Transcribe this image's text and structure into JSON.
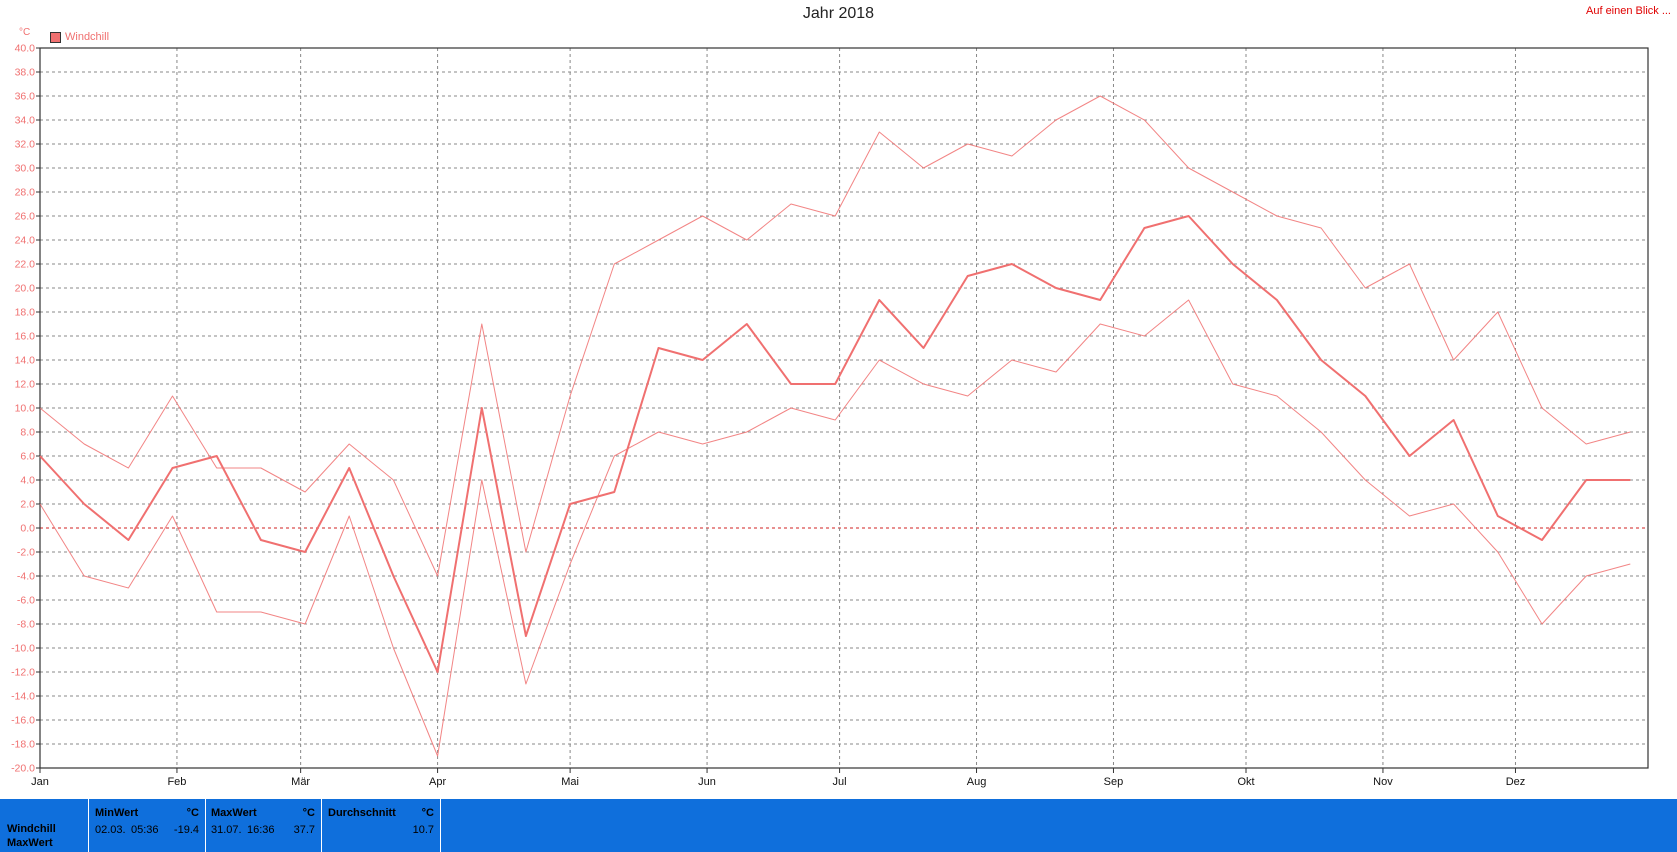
{
  "header": {
    "title": "Jahr 2018",
    "at_a_glance": "Auf einen Blick ..."
  },
  "colors": {
    "series": "#f07070",
    "zero_line": "#d02020",
    "footer": "#0f6fdc"
  },
  "chart_data": {
    "type": "line",
    "title": "Jahr 2018",
    "ylabel": "°C",
    "ylim": [
      -20,
      40
    ],
    "yticks": [
      "40.0",
      "38.0",
      "36.0",
      "34.0",
      "32.0",
      "30.0",
      "28.0",
      "26.0",
      "24.0",
      "22.0",
      "20.0",
      "18.0",
      "16.0",
      "14.0",
      "12.0",
      "10.0",
      "8.0",
      "6.0",
      "4.0",
      "2.0",
      "0.0",
      "-2.0",
      "-4.0",
      "-6.0",
      "-8.0",
      "-10.0",
      "-12.0",
      "-14.0",
      "-16.0",
      "-18.0",
      "-20.0"
    ],
    "months": [
      "Jan",
      "Feb",
      "Mär",
      "Apr",
      "Mai",
      "Jun",
      "Jul",
      "Aug",
      "Sep",
      "Okt",
      "Nov",
      "Dez"
    ],
    "grid": true,
    "legend": {
      "label": "Windchill",
      "position": "top-left"
    },
    "x": [
      1,
      11,
      21,
      31,
      41,
      51,
      61,
      71,
      81,
      91,
      101,
      111,
      121,
      131,
      141,
      151,
      161,
      171,
      181,
      191,
      201,
      211,
      221,
      231,
      241,
      251,
      261,
      271,
      281,
      291,
      301,
      311,
      321,
      331,
      341,
      351,
      361
    ],
    "series": [
      {
        "name": "Windchill",
        "style": "mean",
        "values": [
          6,
          2,
          -1,
          5,
          6,
          -1,
          -2,
          5,
          -4,
          -12,
          10,
          -9,
          2,
          3,
          15,
          14,
          17,
          12,
          12,
          19,
          15,
          21,
          22,
          20,
          19,
          25,
          26,
          22,
          19,
          14,
          11,
          6,
          9,
          1,
          -1,
          4,
          4
        ]
      },
      {
        "style": "max",
        "values": [
          10,
          7,
          5,
          11,
          5,
          5,
          3,
          7,
          4,
          -4,
          17,
          -2,
          11,
          22,
          24,
          26,
          24,
          27,
          26,
          33,
          30,
          32,
          31,
          34,
          36,
          34,
          30,
          28,
          26,
          25,
          20,
          22,
          14,
          18,
          10,
          7,
          8
        ]
      },
      {
        "style": "min",
        "values": [
          2,
          -4,
          -5,
          1,
          -7,
          -7,
          -8,
          1,
          -10,
          -19,
          4,
          -13,
          -3,
          6,
          8,
          7,
          8,
          10,
          9,
          14,
          12,
          11,
          14,
          13,
          17,
          16,
          19,
          12,
          11,
          8,
          4,
          1,
          2,
          -2,
          -8,
          -4,
          -3
        ]
      }
    ]
  },
  "footer": {
    "row_labels": [
      "Windchill",
      "MaxWert"
    ],
    "cells": [
      {
        "header": "MinWert",
        "unit": "°C",
        "date": "02.03.",
        "time": "05:36",
        "value": "-19.4"
      },
      {
        "header": "MaxWert",
        "unit": "°C",
        "date": "31.07.",
        "time": "16:36",
        "value": "37.7"
      },
      {
        "header": "Durchschnitt",
        "unit": "°C",
        "value": "10.7"
      }
    ]
  }
}
